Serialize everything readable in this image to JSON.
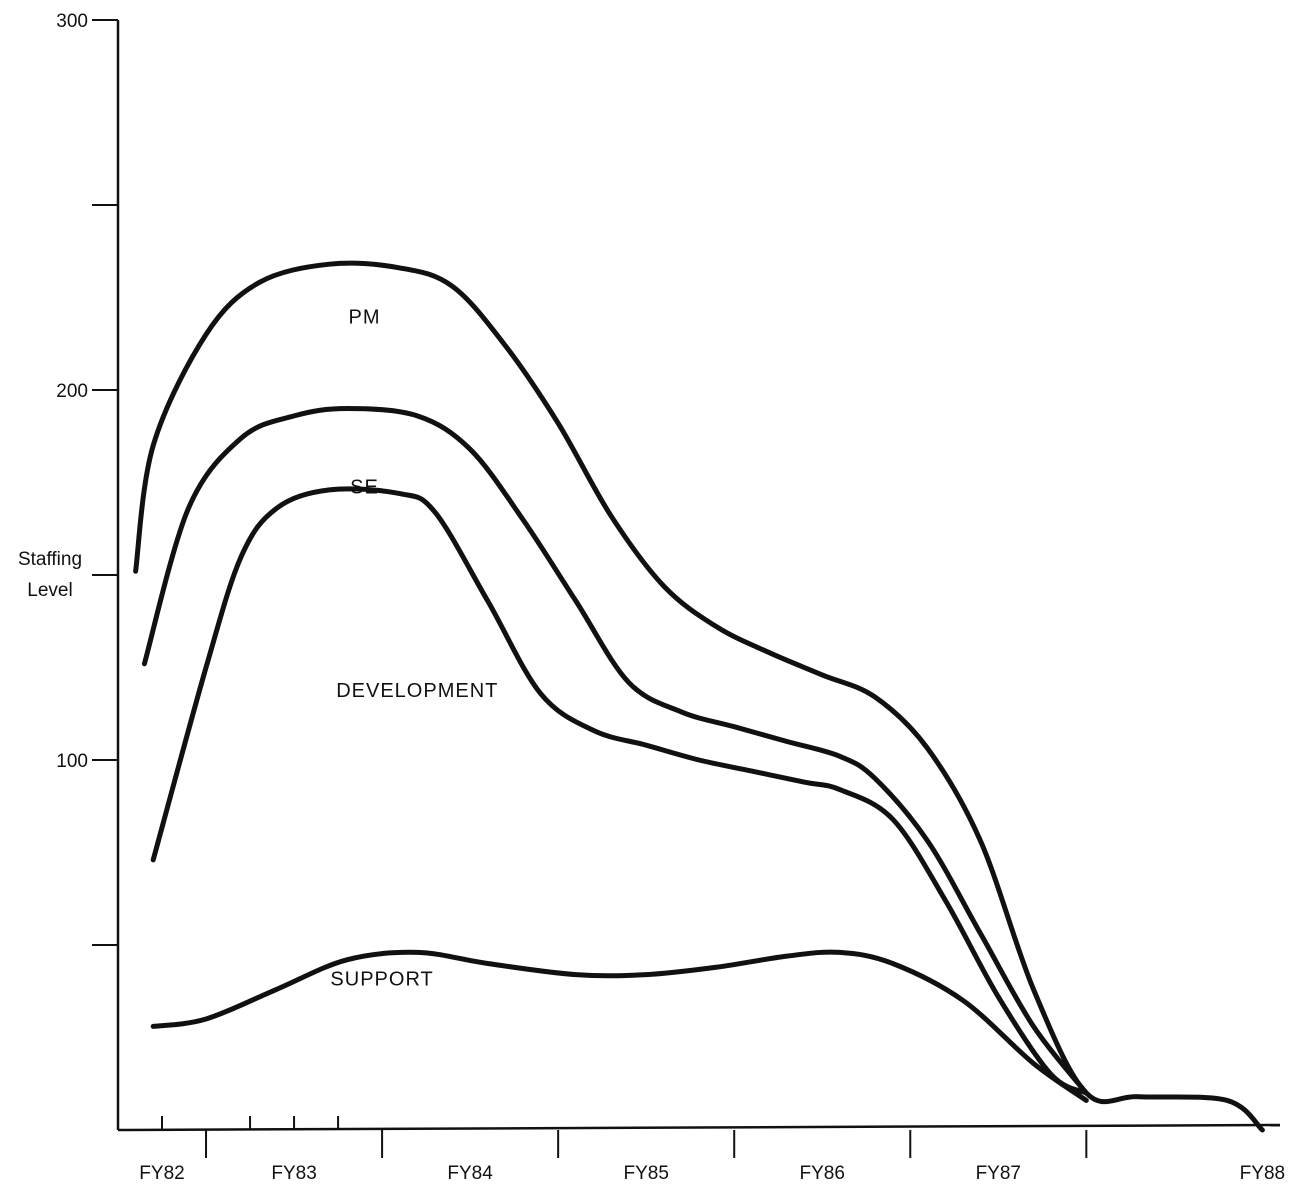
{
  "chart_data": {
    "type": "area",
    "title": "",
    "xlabel": "",
    "ylabel": "Staffing Level",
    "ylabel_lines": [
      "Staffing",
      "Level"
    ],
    "ylim": [
      0,
      300
    ],
    "xlim": [
      1982,
      1988.6
    ],
    "y_ticks": [
      0,
      50,
      100,
      150,
      200,
      250,
      300
    ],
    "y_tick_labels": [
      {
        "value": 100,
        "label": "100"
      },
      {
        "value": 200,
        "label": "200"
      },
      {
        "value": 300,
        "label": "300"
      }
    ],
    "x_category_labels": [
      {
        "label": "FY82",
        "center": 1982.25
      },
      {
        "label": "FY83",
        "center": 1983.0
      },
      {
        "label": "FY84",
        "center": 1984.0
      },
      {
        "label": "FY85",
        "center": 1985.0
      },
      {
        "label": "FY86",
        "center": 1986.0
      },
      {
        "label": "FY87",
        "center": 1987.0
      },
      {
        "label": "FY88",
        "center": 1988.5
      }
    ],
    "x_major_ticks": [
      1982.5,
      1983.5,
      1984.5,
      1985.5,
      1986.5,
      1987.5
    ],
    "x_minor_ticks": [
      1982.25,
      1982.75,
      1983.0,
      1983.25
    ],
    "grid": false,
    "legend": "none",
    "area_labels": [
      {
        "text": "PM",
        "x": 1983.4,
        "y": 218
      },
      {
        "text": "SE",
        "x": 1983.4,
        "y": 172
      },
      {
        "text": "DEVELOPMENT",
        "x": 1983.7,
        "y": 117
      },
      {
        "text": "SUPPORT",
        "x": 1983.5,
        "y": 39
      }
    ],
    "series": [
      {
        "name": "PM",
        "points": [
          [
            1982.1,
            151
          ],
          [
            1982.2,
            185
          ],
          [
            1982.5,
            215
          ],
          [
            1982.8,
            229
          ],
          [
            1983.2,
            234
          ],
          [
            1983.6,
            233
          ],
          [
            1983.9,
            228
          ],
          [
            1984.2,
            212
          ],
          [
            1984.5,
            191
          ],
          [
            1984.8,
            166
          ],
          [
            1985.1,
            147
          ],
          [
            1985.4,
            136
          ],
          [
            1985.7,
            129
          ],
          [
            1986.0,
            123
          ],
          [
            1986.3,
            117
          ],
          [
            1986.6,
            103
          ],
          [
            1986.9,
            78
          ],
          [
            1987.2,
            38
          ],
          [
            1987.5,
            10
          ],
          [
            1987.8,
            9
          ],
          [
            1988.3,
            8
          ],
          [
            1988.5,
            0
          ]
        ]
      },
      {
        "name": "SE",
        "points": [
          [
            1982.15,
            126
          ],
          [
            1982.4,
            168
          ],
          [
            1982.7,
            187
          ],
          [
            1983.0,
            193
          ],
          [
            1983.3,
            195
          ],
          [
            1983.7,
            193
          ],
          [
            1984.0,
            184
          ],
          [
            1984.3,
            165
          ],
          [
            1984.6,
            143
          ],
          [
            1984.9,
            121
          ],
          [
            1985.2,
            113
          ],
          [
            1985.5,
            109
          ],
          [
            1985.8,
            105
          ],
          [
            1986.1,
            101
          ],
          [
            1986.3,
            95
          ],
          [
            1986.6,
            78
          ],
          [
            1986.9,
            53
          ],
          [
            1987.2,
            28
          ],
          [
            1987.5,
            10
          ]
        ]
      },
      {
        "name": "DEVELOPMENT",
        "points": [
          [
            1982.2,
            73
          ],
          [
            1982.5,
            125
          ],
          [
            1982.7,
            155
          ],
          [
            1982.9,
            168
          ],
          [
            1983.2,
            173
          ],
          [
            1983.6,
            172
          ],
          [
            1983.8,
            167
          ],
          [
            1984.1,
            143
          ],
          [
            1984.4,
            118
          ],
          [
            1984.7,
            108
          ],
          [
            1985.0,
            104
          ],
          [
            1985.3,
            100
          ],
          [
            1985.6,
            97
          ],
          [
            1985.9,
            94
          ],
          [
            1986.1,
            92
          ],
          [
            1986.4,
            84
          ],
          [
            1986.7,
            62
          ],
          [
            1987.0,
            36
          ],
          [
            1987.3,
            15
          ],
          [
            1987.5,
            10
          ]
        ]
      },
      {
        "name": "SUPPORT",
        "points": [
          [
            1982.2,
            28
          ],
          [
            1982.5,
            30
          ],
          [
            1982.9,
            38
          ],
          [
            1983.3,
            46
          ],
          [
            1983.7,
            48
          ],
          [
            1984.1,
            45
          ],
          [
            1984.6,
            42
          ],
          [
            1985.0,
            42
          ],
          [
            1985.4,
            44
          ],
          [
            1985.8,
            47
          ],
          [
            1986.1,
            48
          ],
          [
            1986.4,
            45
          ],
          [
            1986.8,
            35
          ],
          [
            1987.2,
            18
          ],
          [
            1987.5,
            8
          ]
        ]
      }
    ]
  }
}
